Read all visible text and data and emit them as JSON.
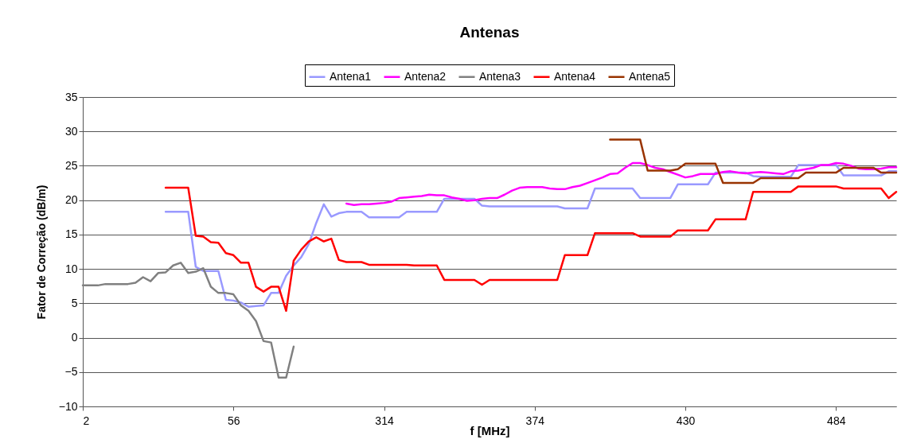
{
  "chart_data": {
    "type": "line",
    "title": "Antenas",
    "xlabel": "f [MHz]",
    "ylabel": "Fator de Correção (dB/m)",
    "categories": [
      "2",
      null,
      null,
      null,
      null,
      null,
      null,
      null,
      null,
      null,
      null,
      null,
      null,
      null,
      null,
      null,
      null,
      null,
      null,
      null,
      "56",
      null,
      null,
      null,
      null,
      null,
      null,
      null,
      null,
      null,
      null,
      null,
      null,
      null,
      null,
      null,
      null,
      null,
      null,
      null,
      "314",
      null,
      null,
      null,
      null,
      null,
      null,
      null,
      null,
      null,
      null,
      null,
      null,
      null,
      null,
      null,
      null,
      null,
      null,
      null,
      "374",
      null,
      null,
      null,
      null,
      null,
      null,
      null,
      null,
      null,
      null,
      null,
      null,
      null,
      null,
      null,
      null,
      null,
      null,
      null,
      "430",
      null,
      null,
      null,
      null,
      null,
      null,
      null,
      null,
      null,
      null,
      null,
      null,
      null,
      null,
      null,
      null,
      null,
      null,
      null,
      "484",
      null,
      null,
      null,
      null,
      null,
      null,
      null,
      null
    ],
    "series": [
      {
        "name": "Antena1",
        "color": "#9999ff",
        "values": [
          null,
          null,
          null,
          null,
          null,
          null,
          null,
          null,
          null,
          null,
          null,
          18.3,
          18.3,
          18.3,
          18.3,
          10.3,
          9.7,
          9.7,
          9.7,
          5.5,
          5.4,
          5.1,
          4.5,
          4.6,
          4.7,
          6.5,
          6.5,
          9.0,
          10.5,
          11.7,
          13.6,
          16.7,
          19.4,
          17.6,
          18.1,
          18.3,
          18.3,
          18.3,
          17.5,
          17.5,
          17.5,
          17.5,
          17.5,
          18.3,
          18.3,
          18.3,
          18.3,
          18.3,
          20.2,
          20.2,
          20.2,
          20.2,
          20.2,
          19.2,
          19.1,
          19.1,
          19.1,
          19.1,
          19.1,
          19.1,
          19.1,
          19.1,
          19.1,
          19.1,
          18.8,
          18.8,
          18.8,
          18.8,
          21.7,
          21.7,
          21.7,
          21.7,
          21.7,
          21.7,
          20.3,
          20.3,
          20.3,
          20.3,
          20.3,
          22.3,
          22.3,
          22.3,
          22.3,
          22.3,
          24.0,
          24.0,
          24.0,
          24.0,
          24.0,
          23.5,
          23.4,
          23.4,
          23.4,
          23.4,
          23.4,
          25.1,
          25.1,
          25.1,
          25.1,
          25.1,
          25.1,
          23.6,
          23.6,
          23.6,
          23.6,
          23.6,
          23.6,
          24.2,
          24.2
        ]
      },
      {
        "name": "Antena2",
        "color": "#ff00ff",
        "values": [
          null,
          null,
          null,
          null,
          null,
          null,
          null,
          null,
          null,
          null,
          null,
          null,
          null,
          null,
          null,
          null,
          null,
          null,
          null,
          null,
          null,
          null,
          null,
          null,
          null,
          null,
          null,
          null,
          null,
          null,
          null,
          null,
          null,
          null,
          null,
          19.5,
          19.3,
          19.4,
          19.4,
          19.5,
          19.6,
          19.8,
          20.3,
          20.4,
          20.5,
          20.6,
          20.8,
          20.7,
          20.7,
          20.4,
          20.2,
          19.9,
          20.0,
          20.2,
          20.3,
          20.3,
          20.8,
          21.4,
          21.8,
          21.9,
          21.9,
          21.9,
          21.7,
          21.6,
          21.6,
          21.9,
          22.1,
          22.5,
          22.9,
          23.3,
          23.8,
          23.9,
          24.7,
          25.4,
          25.4,
          25.1,
          24.7,
          24.5,
          24.1,
          23.7,
          23.3,
          23.5,
          23.8,
          23.8,
          23.8,
          24.1,
          24.2,
          24.0,
          23.9,
          24.0,
          24.1,
          24.0,
          23.9,
          23.8,
          24.2,
          24.3,
          24.5,
          24.7,
          25.1,
          25.1,
          25.4,
          25.3,
          25.0,
          24.6,
          24.5,
          24.5,
          24.6,
          24.8,
          24.8
        ]
      },
      {
        "name": "Antena3",
        "color": "#808080",
        "values": [
          7.6,
          7.6,
          7.6,
          7.8,
          7.8,
          7.8,
          7.8,
          8.0,
          8.8,
          8.2,
          9.4,
          9.5,
          10.5,
          10.9,
          9.4,
          9.6,
          10.1,
          7.4,
          6.5,
          6.5,
          6.3,
          4.7,
          3.9,
          2.4,
          -0.5,
          -0.7,
          -5.8,
          -5.8,
          -1.3,
          null,
          null,
          null,
          null,
          null,
          null,
          null,
          null,
          null,
          null,
          null,
          null,
          null,
          null,
          null,
          null,
          null,
          null,
          null,
          null,
          null,
          null,
          null,
          null,
          null,
          null,
          null,
          null,
          null,
          null,
          null,
          null,
          null,
          null,
          null,
          null,
          null,
          null,
          null,
          null,
          null,
          null,
          null,
          null,
          null,
          null,
          null,
          null,
          null,
          null,
          null,
          null,
          null,
          null,
          null,
          null,
          null,
          null,
          null,
          null,
          null,
          null,
          null,
          null,
          null,
          null,
          null,
          null,
          null,
          null,
          null,
          null,
          null,
          null,
          null,
          null,
          null,
          null,
          null,
          null
        ]
      },
      {
        "name": "Antena4",
        "color": "#ff0000",
        "values": [
          null,
          null,
          null,
          null,
          null,
          null,
          null,
          null,
          null,
          null,
          null,
          21.8,
          21.8,
          21.8,
          21.8,
          14.8,
          14.7,
          13.9,
          13.8,
          12.3,
          12.0,
          10.9,
          10.9,
          7.4,
          6.7,
          7.4,
          7.4,
          3.9,
          11.2,
          12.8,
          14.0,
          14.6,
          14.0,
          14.4,
          11.3,
          11.0,
          11.0,
          11.0,
          10.6,
          10.6,
          10.6,
          10.6,
          10.6,
          10.6,
          10.5,
          10.5,
          10.5,
          10.5,
          8.4,
          8.4,
          8.4,
          8.4,
          8.4,
          7.7,
          8.4,
          8.4,
          8.4,
          8.4,
          8.4,
          8.4,
          8.4,
          8.4,
          8.4,
          8.4,
          12.0,
          12.0,
          12.0,
          12.0,
          15.2,
          15.2,
          15.2,
          15.2,
          15.2,
          15.2,
          14.7,
          14.7,
          14.7,
          14.7,
          14.7,
          15.6,
          15.6,
          15.6,
          15.6,
          15.6,
          17.2,
          17.2,
          17.2,
          17.2,
          17.2,
          21.2,
          21.2,
          21.2,
          21.2,
          21.2,
          21.2,
          22.0,
          22.0,
          22.0,
          22.0,
          22.0,
          22.0,
          21.7,
          21.7,
          21.7,
          21.7,
          21.7,
          21.7,
          20.3,
          21.2
        ]
      },
      {
        "name": "Antena5",
        "color": "#993300",
        "values": [
          null,
          null,
          null,
          null,
          null,
          null,
          null,
          null,
          null,
          null,
          null,
          null,
          null,
          null,
          null,
          null,
          null,
          null,
          null,
          null,
          null,
          null,
          null,
          null,
          null,
          null,
          null,
          null,
          null,
          null,
          null,
          null,
          null,
          null,
          null,
          null,
          null,
          null,
          null,
          null,
          null,
          null,
          null,
          null,
          null,
          null,
          null,
          null,
          null,
          null,
          null,
          null,
          null,
          null,
          null,
          null,
          null,
          null,
          null,
          null,
          null,
          null,
          null,
          null,
          null,
          null,
          null,
          null,
          null,
          null,
          28.8,
          28.8,
          28.8,
          28.8,
          28.8,
          24.3,
          24.3,
          24.3,
          24.3,
          24.5,
          25.3,
          25.3,
          25.3,
          25.3,
          25.3,
          22.5,
          22.5,
          22.5,
          22.5,
          22.5,
          23.2,
          23.2,
          23.2,
          23.2,
          23.2,
          23.2,
          24.0,
          24.0,
          24.0,
          24.0,
          24.0,
          24.7,
          24.7,
          24.7,
          24.7,
          24.7,
          24.0,
          24.0,
          24.0
        ]
      }
    ],
    "ylim": [
      -10,
      35
    ],
    "yticks": [
      -10,
      -5,
      0,
      5,
      10,
      15,
      20,
      25,
      30,
      35
    ],
    "grid": "y",
    "legend": "top",
    "line_style": "solid",
    "marker": "none"
  }
}
